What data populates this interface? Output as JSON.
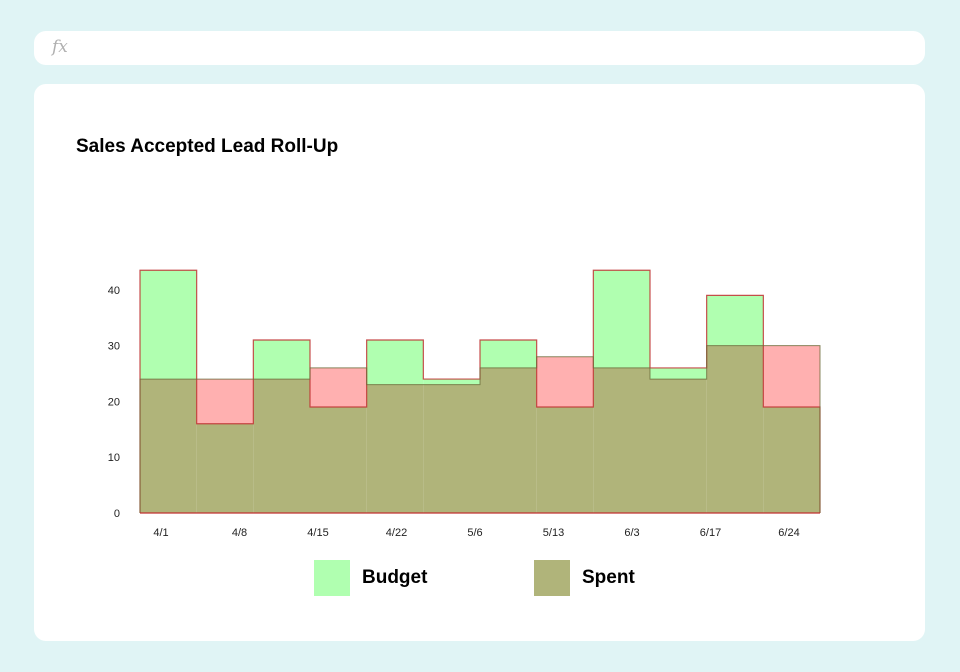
{
  "formula_bar": {
    "fx_label": "fx"
  },
  "chart_data": {
    "type": "area",
    "title": "Sales Accepted Lead Roll-Up",
    "xlabel": "",
    "ylabel": "",
    "ylim": [
      0,
      45
    ],
    "yticks": [
      0,
      10,
      20,
      30,
      40
    ],
    "grid": false,
    "legend_position": "bottom",
    "x_tick_labels": [
      "4/1",
      "4/8",
      "4/15",
      "4/22",
      "5/6",
      "5/13",
      "6/3",
      "6/17",
      "6/24"
    ],
    "series": [
      {
        "name": "Budget",
        "color": "#b0ffb0",
        "step_edges": [
          0,
          1,
          2,
          3,
          4,
          5,
          6,
          7,
          8,
          9,
          10,
          11,
          12
        ],
        "values": [
          43.5,
          16,
          31,
          19,
          31,
          24,
          31,
          19,
          43.5,
          26,
          39,
          19
        ]
      },
      {
        "name": "Spent",
        "color": "#b0b47a",
        "step_edges": [
          0,
          1,
          2,
          3,
          4,
          5,
          6,
          7,
          8,
          9,
          10,
          11,
          12
        ],
        "values": [
          24,
          24,
          24,
          26,
          23,
          23,
          26,
          28,
          26,
          24,
          30,
          30
        ]
      }
    ],
    "overflow_color": "#ffb0b0",
    "edge_color": "#c03030"
  },
  "legend": [
    {
      "label": "Budget",
      "color": "#b0ffb0"
    },
    {
      "label": "Spent",
      "color": "#b0b47a"
    }
  ]
}
